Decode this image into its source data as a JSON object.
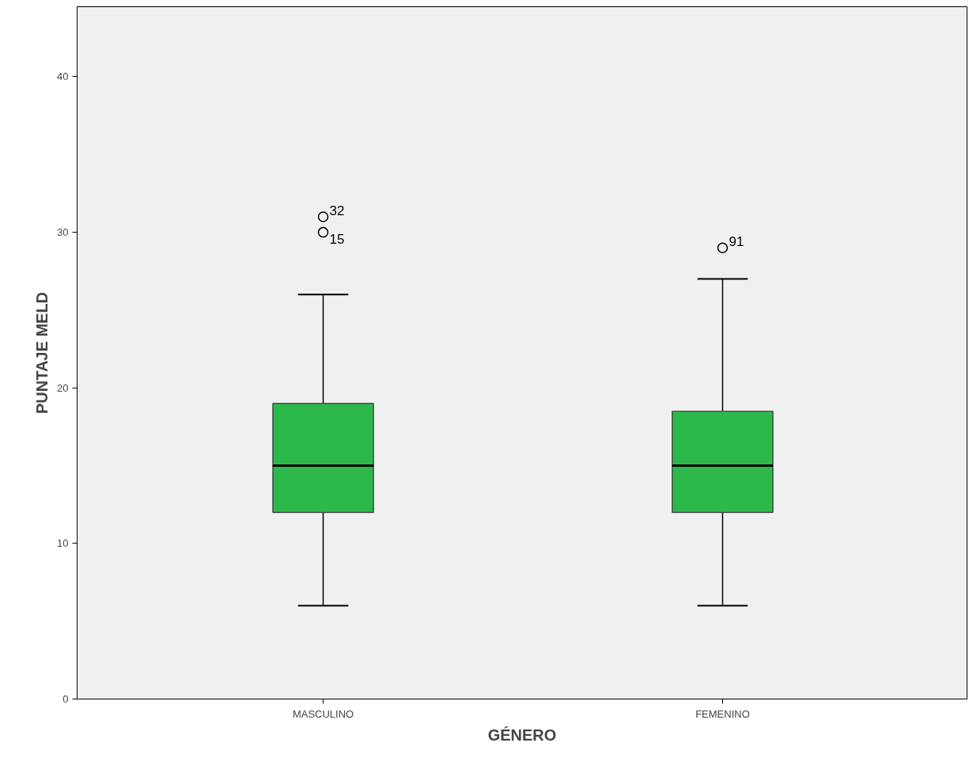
{
  "chart_data": {
    "type": "box",
    "xlabel": "GÉNERO",
    "ylabel": "PUNTAJE MELD",
    "categories": [
      "MASCULINO",
      "FEMENINO"
    ],
    "color": "#2db84b",
    "boxes": [
      {
        "low": 6,
        "q1": 12,
        "median": 15,
        "q3": 19,
        "high": 26,
        "outliers": [
          30,
          31
        ]
      },
      {
        "low": 6,
        "q1": 12,
        "median": 15,
        "q3": 18.5,
        "high": 27,
        "outliers": [
          29
        ]
      }
    ],
    "ylim": [
      0,
      44.5
    ],
    "yticks": [
      0,
      10,
      20,
      30,
      40
    ],
    "annotations": [
      "15",
      "32",
      "91"
    ]
  }
}
